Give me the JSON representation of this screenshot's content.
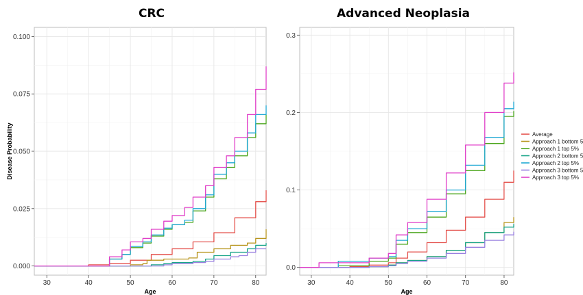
{
  "figure": {
    "ylabel": "Disease Probability",
    "xlabel": "Age"
  },
  "legend": {
    "placement": "right",
    "items": [
      {
        "name": "Average",
        "color": "#E4514C"
      },
      {
        "name": "Approach 1 bottom 5%",
        "color": "#B8961E"
      },
      {
        "name": "Approach 1 top 5%",
        "color": "#4CA61E"
      },
      {
        "name": "Approach 2 bottom 5%",
        "color": "#17A488"
      },
      {
        "name": "Approach 2 top 5%",
        "color": "#1FA8D4"
      },
      {
        "name": "Approach 3 bottom 5%",
        "color": "#9A80E0"
      },
      {
        "name": "Approach 3 top 5%",
        "color": "#E03EC8"
      }
    ]
  },
  "chart_data": [
    {
      "type": "line",
      "title": "CRC",
      "xlabel": "Age",
      "ylabel": "Disease Probability",
      "xlim": [
        27,
        82.5
      ],
      "ylim": [
        -0.004,
        0.104
      ],
      "xticks": [
        30,
        40,
        50,
        60,
        70,
        80
      ],
      "yticks": [
        0,
        0.025,
        0.05,
        0.075,
        0.1
      ],
      "ytick_labels": [
        "0.000",
        "0.025",
        "0.050",
        "0.075",
        "0.100"
      ],
      "xtick_labels": [
        "30",
        "40",
        "50",
        "60",
        "70",
        "80"
      ],
      "grid": true,
      "series": [
        {
          "name": "Average",
          "x": [
            27,
            40,
            45,
            50,
            55,
            60,
            65,
            70,
            75,
            80,
            82.5
          ],
          "y": [
            0,
            0.0005,
            0.001,
            0.0025,
            0.005,
            0.0075,
            0.0105,
            0.0145,
            0.021,
            0.028,
            0.033
          ]
        },
        {
          "name": "Approach 1 bottom 5%",
          "x": [
            27,
            48,
            50,
            53,
            54,
            58,
            60,
            64,
            66,
            70,
            74,
            78,
            80,
            82.5
          ],
          "y": [
            0,
            0,
            0.0005,
            0.001,
            0.0025,
            0.003,
            0.003,
            0.0035,
            0.006,
            0.0075,
            0.009,
            0.01,
            0.012,
            0.016
          ]
        },
        {
          "name": "Approach 1 top 5%",
          "x": [
            27,
            40,
            45,
            48,
            50,
            53,
            55,
            58,
            60,
            63,
            65,
            68,
            70,
            73,
            75,
            78,
            80,
            82.5
          ],
          "y": [
            0,
            0,
            0.003,
            0.005,
            0.008,
            0.01,
            0.013,
            0.016,
            0.018,
            0.019,
            0.024,
            0.03,
            0.038,
            0.043,
            0.048,
            0.056,
            0.062,
            0.066
          ]
        },
        {
          "name": "Approach 2 bottom 5%",
          "x": [
            27,
            52,
            55,
            58,
            60,
            65,
            68,
            70,
            74,
            78,
            80,
            82.5
          ],
          "y": [
            0,
            0,
            0.0005,
            0.001,
            0.0015,
            0.002,
            0.003,
            0.0045,
            0.006,
            0.0075,
            0.009,
            0.01
          ]
        },
        {
          "name": "Approach 2 top 5%",
          "x": [
            27,
            40,
            45,
            48,
            50,
            53,
            55,
            58,
            60,
            63,
            65,
            68,
            70,
            73,
            75,
            78,
            80,
            82.5
          ],
          "y": [
            0,
            0,
            0.003,
            0.005,
            0.0085,
            0.0105,
            0.0135,
            0.0165,
            0.018,
            0.02,
            0.025,
            0.031,
            0.04,
            0.045,
            0.05,
            0.058,
            0.066,
            0.07
          ]
        },
        {
          "name": "Approach 3 bottom 5%",
          "x": [
            27,
            55,
            58,
            60,
            65,
            68,
            70,
            74,
            76,
            78,
            80,
            82.5
          ],
          "y": [
            0,
            0,
            0.0005,
            0.001,
            0.0015,
            0.002,
            0.003,
            0.004,
            0.0045,
            0.006,
            0.0075,
            0.0075
          ]
        },
        {
          "name": "Approach 3 top 5%",
          "x": [
            27,
            40,
            45,
            48,
            50,
            53,
            55,
            58,
            60,
            63,
            65,
            68,
            70,
            73,
            75,
            78,
            80,
            82.5
          ],
          "y": [
            0,
            0,
            0.004,
            0.007,
            0.0105,
            0.012,
            0.016,
            0.0195,
            0.022,
            0.0255,
            0.03,
            0.035,
            0.043,
            0.048,
            0.056,
            0.066,
            0.077,
            0.087
          ]
        }
      ]
    },
    {
      "type": "line",
      "title": "Advanced Neoplasia",
      "xlabel": "Age",
      "ylabel": "",
      "xlim": [
        27,
        82.5
      ],
      "ylim": [
        -0.01,
        0.31
      ],
      "xticks": [
        30,
        40,
        50,
        60,
        70,
        80
      ],
      "yticks": [
        0,
        0.1,
        0.2,
        0.3
      ],
      "ytick_labels": [
        "0.0",
        "0.1",
        "0.2",
        "0.3"
      ],
      "xtick_labels": [
        "30",
        "40",
        "50",
        "60",
        "70",
        "80"
      ],
      "grid": true,
      "series": [
        {
          "name": "Average",
          "x": [
            27,
            40,
            45,
            50,
            52,
            55,
            60,
            65,
            70,
            75,
            80,
            82.5
          ],
          "y": [
            0,
            0.001,
            0.003,
            0.006,
            0.012,
            0.02,
            0.032,
            0.048,
            0.065,
            0.088,
            0.11,
            0.125
          ]
        },
        {
          "name": "Approach 1 bottom 5%",
          "x": [
            27,
            45,
            50,
            52,
            55,
            60,
            65,
            70,
            75,
            80,
            82.5
          ],
          "y": [
            0,
            0.001,
            0.003,
            0.006,
            0.009,
            0.014,
            0.022,
            0.032,
            0.045,
            0.058,
            0.065
          ]
        },
        {
          "name": "Approach 1 top 5%",
          "x": [
            27,
            37,
            45,
            50,
            52,
            55,
            60,
            65,
            70,
            75,
            80,
            82.5
          ],
          "y": [
            0,
            0.002,
            0.008,
            0.012,
            0.03,
            0.045,
            0.065,
            0.095,
            0.125,
            0.16,
            0.195,
            0.202
          ]
        },
        {
          "name": "Approach 2 bottom 5%",
          "x": [
            27,
            45,
            50,
            52,
            55,
            60,
            65,
            70,
            75,
            80,
            82.5
          ],
          "y": [
            0,
            0.001,
            0.003,
            0.006,
            0.009,
            0.014,
            0.022,
            0.032,
            0.045,
            0.052,
            0.056
          ]
        },
        {
          "name": "Approach 2 top 5%",
          "x": [
            27,
            37,
            45,
            50,
            52,
            55,
            60,
            65,
            70,
            75,
            80,
            82.5
          ],
          "y": [
            0,
            0.008,
            0.012,
            0.014,
            0.035,
            0.05,
            0.072,
            0.1,
            0.132,
            0.168,
            0.205,
            0.214
          ]
        },
        {
          "name": "Approach 3 bottom 5%",
          "x": [
            27,
            45,
            50,
            52,
            55,
            60,
            65,
            70,
            75,
            80,
            82.5
          ],
          "y": [
            0,
            0.001,
            0.002,
            0.005,
            0.008,
            0.012,
            0.018,
            0.026,
            0.035,
            0.042,
            0.046
          ]
        },
        {
          "name": "Approach 3 top 5%",
          "x": [
            27,
            32,
            45,
            50,
            52,
            55,
            60,
            65,
            70,
            75,
            80,
            82.5
          ],
          "y": [
            0,
            0.006,
            0.012,
            0.018,
            0.042,
            0.058,
            0.088,
            0.122,
            0.158,
            0.2,
            0.238,
            0.252
          ]
        }
      ]
    }
  ]
}
